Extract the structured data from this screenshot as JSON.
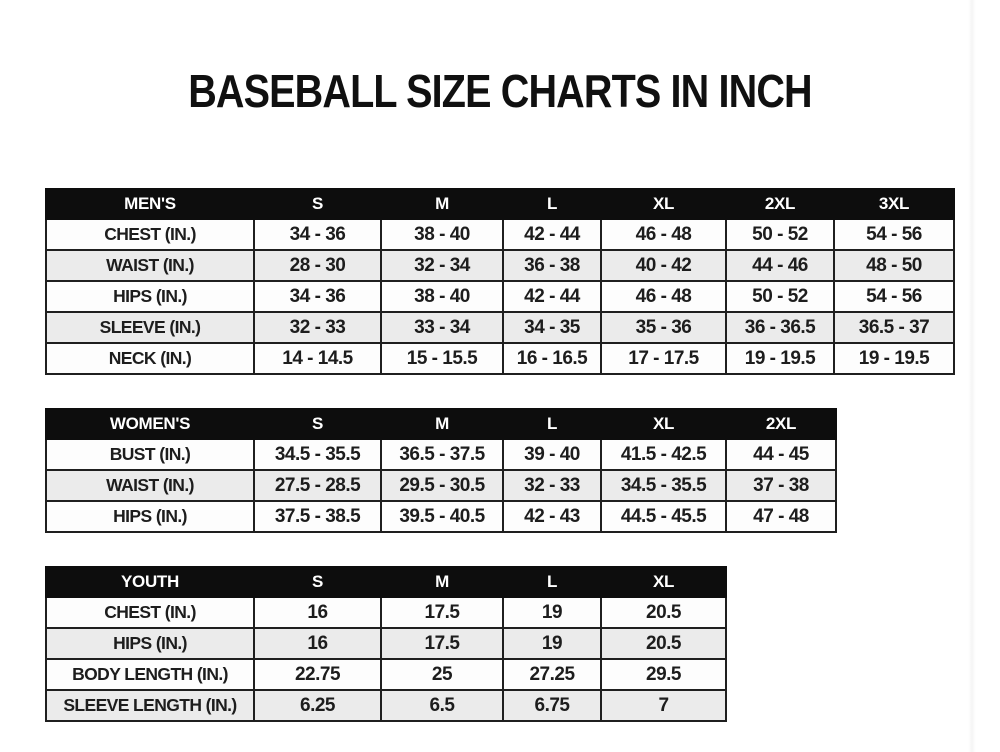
{
  "title": "BASEBALL SIZE CHARTS IN INCH",
  "colors": {
    "header_bg": "#0d0d0d",
    "header_text": "#ffffff",
    "row_white": "#fdfdfd",
    "row_gray": "#ebebeb",
    "border": "#1f1f1f",
    "text": "#1d1d1d",
    "background": "#ffffff"
  },
  "tables": [
    {
      "name": "mens",
      "header": [
        "MEN'S",
        "S",
        "M",
        "L",
        "XL",
        "2XL",
        "3XL"
      ],
      "rows": [
        [
          "CHEST (IN.)",
          "34 - 36",
          "38 - 40",
          "42 - 44",
          "46 - 48",
          "50 - 52",
          "54 - 56"
        ],
        [
          "WAIST (IN.)",
          "28 - 30",
          "32 - 34",
          "36 - 38",
          "40 - 42",
          "44 - 46",
          "48 - 50"
        ],
        [
          "HIPS (IN.)",
          "34 - 36",
          "38 - 40",
          "42 - 44",
          "46 - 48",
          "50 - 52",
          "54 - 56"
        ],
        [
          "SLEEVE (IN.)",
          "32 - 33",
          "33 - 34",
          "34 - 35",
          "35 - 36",
          "36 - 36.5",
          "36.5 - 37"
        ],
        [
          "NECK (IN.)",
          "14 - 14.5",
          "15 - 15.5",
          "16 - 16.5",
          "17 - 17.5",
          "19 - 19.5",
          "19 - 19.5"
        ]
      ]
    },
    {
      "name": "womens",
      "header": [
        "WOMEN'S",
        "S",
        "M",
        "L",
        "XL",
        "2XL"
      ],
      "rows": [
        [
          "BUST (IN.)",
          "34.5 - 35.5",
          "36.5 - 37.5",
          "39 - 40",
          "41.5 - 42.5",
          "44 - 45"
        ],
        [
          "WAIST (IN.)",
          "27.5 - 28.5",
          "29.5 - 30.5",
          "32 - 33",
          "34.5 - 35.5",
          "37 - 38"
        ],
        [
          "HIPS (IN.)",
          "37.5 - 38.5",
          "39.5 - 40.5",
          "42 - 43",
          "44.5 - 45.5",
          "47 - 48"
        ]
      ]
    },
    {
      "name": "youth",
      "header": [
        "YOUTH",
        "S",
        "M",
        "L",
        "XL"
      ],
      "rows": [
        [
          "CHEST (IN.)",
          "16",
          "17.5",
          "19",
          "20.5"
        ],
        [
          "HIPS (IN.)",
          "16",
          "17.5",
          "19",
          "20.5"
        ],
        [
          "BODY LENGTH (IN.)",
          "22.75",
          "25",
          "27.25",
          "29.5"
        ],
        [
          "SLEEVE LENGTH (IN.)",
          "6.25",
          "6.5",
          "6.75",
          "7"
        ]
      ]
    }
  ]
}
